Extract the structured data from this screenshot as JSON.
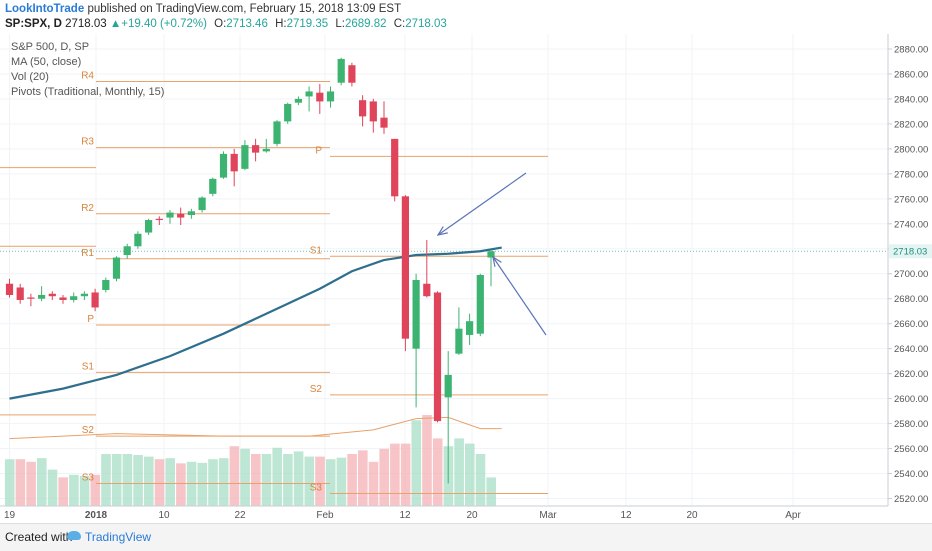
{
  "header": {
    "author": "LookIntoTrade",
    "published_text": "published on TradingView.com, February 15, 2018 13:09 EST",
    "symbol": "SP:SPX, D",
    "last": "2718.03",
    "change": "+19.40 (+0.72%)",
    "open_label": "O:",
    "open": "2713.46",
    "high_label": "H:",
    "high": "2719.35",
    "low_label": "L:",
    "low": "2689.82",
    "close_label": "C:",
    "close": "2718.03"
  },
  "legend": {
    "line1": "S&P 500, D, SP",
    "line2": "MA (50, close)",
    "line3": "Vol (20)",
    "line4": "Pivots (Traditional, Monthly, 15)"
  },
  "footer": {
    "created_with": "Created with",
    "brand": "TradingView"
  },
  "colors": {
    "up": "#26a69a",
    "down": "#e0445a",
    "up_candle": "#3cb371",
    "ma": "#2e6f8e",
    "pivot": "#e8a26b",
    "annotation": "#5b73b8",
    "price_line": "#6cc2b8"
  },
  "chart_data": {
    "type": "candlestick",
    "y_ticks": [
      2520,
      2540,
      2560,
      2580,
      2600,
      2620,
      2640,
      2660,
      2680,
      2700,
      2720,
      2740,
      2760,
      2780,
      2800,
      2820,
      2840,
      2860,
      2880
    ],
    "ylim": [
      2514,
      2892
    ],
    "x_ticks": [
      "19",
      "2018",
      "10",
      "22",
      "Feb",
      "12",
      "20",
      "Mar",
      "12",
      "20",
      "Apr"
    ],
    "last_price_label": "2718.03",
    "candles": [
      {
        "o": 2692,
        "h": 2696,
        "l": 2681,
        "c": 2683
      },
      {
        "o": 2689,
        "h": 2692,
        "l": 2676,
        "c": 2679
      },
      {
        "o": 2681,
        "h": 2684,
        "l": 2674,
        "c": 2680
      },
      {
        "o": 2680,
        "h": 2690,
        "l": 2678,
        "c": 2683
      },
      {
        "o": 2684,
        "h": 2686,
        "l": 2679,
        "c": 2682
      },
      {
        "o": 2681,
        "h": 2683,
        "l": 2676,
        "c": 2679
      },
      {
        "o": 2679,
        "h": 2685,
        "l": 2677,
        "c": 2682
      },
      {
        "o": 2682,
        "h": 2686,
        "l": 2679,
        "c": 2684
      },
      {
        "o": 2685,
        "h": 2688,
        "l": 2670,
        "c": 2673
      },
      {
        "o": 2687,
        "h": 2697,
        "l": 2685,
        "c": 2695
      },
      {
        "o": 2696,
        "h": 2714,
        "l": 2694,
        "c": 2713
      },
      {
        "o": 2715,
        "h": 2724,
        "l": 2712,
        "c": 2722
      },
      {
        "o": 2722,
        "h": 2734,
        "l": 2720,
        "c": 2732
      },
      {
        "o": 2733,
        "h": 2744,
        "l": 2731,
        "c": 2743
      },
      {
        "o": 2744,
        "h": 2746,
        "l": 2739,
        "c": 2743
      },
      {
        "o": 2745,
        "h": 2751,
        "l": 2740,
        "c": 2749
      },
      {
        "o": 2748,
        "h": 2753,
        "l": 2739,
        "c": 2745
      },
      {
        "o": 2747,
        "h": 2752,
        "l": 2744,
        "c": 2750
      },
      {
        "o": 2751,
        "h": 2762,
        "l": 2749,
        "c": 2761
      },
      {
        "o": 2764,
        "h": 2777,
        "l": 2762,
        "c": 2776
      },
      {
        "o": 2777,
        "h": 2798,
        "l": 2776,
        "c": 2796
      },
      {
        "o": 2796,
        "h": 2800,
        "l": 2770,
        "c": 2782
      },
      {
        "o": 2784,
        "h": 2807,
        "l": 2783,
        "c": 2803
      },
      {
        "o": 2803,
        "h": 2808,
        "l": 2790,
        "c": 2797
      },
      {
        "o": 2798,
        "h": 2808,
        "l": 2797,
        "c": 2800
      },
      {
        "o": 2804,
        "h": 2823,
        "l": 2802,
        "c": 2822
      },
      {
        "o": 2822,
        "h": 2837,
        "l": 2820,
        "c": 2836
      },
      {
        "o": 2837,
        "h": 2842,
        "l": 2835,
        "c": 2840
      },
      {
        "o": 2842,
        "h": 2850,
        "l": 2830,
        "c": 2846
      },
      {
        "o": 2845,
        "h": 2852,
        "l": 2828,
        "c": 2838
      },
      {
        "o": 2838,
        "h": 2850,
        "l": 2833,
        "c": 2846
      },
      {
        "o": 2853,
        "h": 2873,
        "l": 2851,
        "c": 2872
      },
      {
        "o": 2867,
        "h": 2869,
        "l": 2850,
        "c": 2853
      },
      {
        "o": 2839,
        "h": 2843,
        "l": 2818,
        "c": 2826
      },
      {
        "o": 2838,
        "h": 2840,
        "l": 2813,
        "c": 2822
      },
      {
        "o": 2825,
        "h": 2838,
        "l": 2812,
        "c": 2817
      },
      {
        "o": 2808,
        "h": 2808,
        "l": 2758,
        "c": 2762
      },
      {
        "o": 2762,
        "h": 2763,
        "l": 2638,
        "c": 2648
      },
      {
        "o": 2640,
        "h": 2700,
        "l": 2593,
        "c": 2695
      },
      {
        "o": 2692,
        "h": 2727,
        "l": 2681,
        "c": 2682
      },
      {
        "o": 2685,
        "h": 2686,
        "l": 2581,
        "c": 2582
      },
      {
        "o": 2601,
        "h": 2638,
        "l": 2532,
        "c": 2619
      },
      {
        "o": 2636,
        "h": 2673,
        "l": 2635,
        "c": 2656
      },
      {
        "o": 2651,
        "h": 2668,
        "l": 2643,
        "c": 2662
      },
      {
        "o": 2652,
        "h": 2700,
        "l": 2650,
        "c": 2699
      },
      {
        "o": 2713,
        "h": 2719,
        "l": 2690,
        "c": 2718
      }
    ],
    "volume_up": [
      true,
      false,
      false,
      true,
      true,
      false,
      true,
      true,
      false,
      true,
      true,
      true,
      true,
      true,
      false,
      true,
      false,
      true,
      true,
      true,
      true,
      false,
      true,
      false,
      true,
      true,
      true,
      true,
      true,
      false,
      true,
      true,
      false,
      false,
      false,
      false,
      false,
      false,
      true,
      false,
      false,
      true,
      true,
      true,
      true,
      true
    ],
    "volume_relative": [
      0.9,
      0.9,
      0.85,
      0.92,
      0.7,
      0.55,
      0.6,
      0.58,
      0.6,
      1.0,
      1.0,
      1.0,
      0.98,
      0.95,
      0.9,
      0.92,
      0.82,
      0.85,
      0.83,
      0.9,
      0.92,
      1.15,
      1.1,
      1.0,
      1.0,
      1.12,
      1.0,
      1.05,
      0.95,
      0.95,
      0.9,
      0.93,
      1.0,
      1.07,
      0.85,
      1.1,
      1.2,
      1.2,
      1.65,
      1.75,
      1.3,
      1.15,
      1.3,
      1.2,
      1.0,
      0.55
    ],
    "ma50": [
      {
        "i": 0,
        "v": 2600
      },
      {
        "i": 5,
        "v": 2608
      },
      {
        "i": 10,
        "v": 2619
      },
      {
        "i": 15,
        "v": 2634
      },
      {
        "i": 20,
        "v": 2652
      },
      {
        "i": 25,
        "v": 2672
      },
      {
        "i": 29,
        "v": 2688
      },
      {
        "i": 32,
        "v": 2702
      },
      {
        "i": 35,
        "v": 2711
      },
      {
        "i": 38,
        "v": 2715
      },
      {
        "i": 41,
        "v": 2716
      },
      {
        "i": 44,
        "v": 2718
      },
      {
        "i": 46,
        "v": 2721
      }
    ],
    "pivots": [
      {
        "label": "R1",
        "value": 2712,
        "i0": 0,
        "i1": 14,
        "show": true
      },
      {
        "label": "R2",
        "value": 2748,
        "i0": 0,
        "i1": 14,
        "show": true
      },
      {
        "label": "R3",
        "value": 2801,
        "i0": 0,
        "i1": 14,
        "show": true
      },
      {
        "label": "R4",
        "value": 2854,
        "i0": 0,
        "i1": 14,
        "show": true
      },
      {
        "label": "P",
        "value": 2659,
        "i0": 0,
        "i1": 14,
        "show": true
      },
      {
        "label": "S1",
        "value": 2621,
        "i0": 0,
        "i1": 14,
        "show": true
      },
      {
        "label": "S2",
        "value": 2570,
        "i0": 0,
        "i1": 14,
        "show": true
      },
      {
        "label": "S3",
        "value": 2532,
        "i0": 0,
        "i1": 14,
        "show": true
      },
      {
        "label": "",
        "value": 2785,
        "i0": -1,
        "i1": 0,
        "show": false
      },
      {
        "label": "",
        "value": 2722,
        "i0": -1,
        "i1": 0,
        "show": false
      },
      {
        "label": "",
        "value": 2587,
        "i0": -1,
        "i1": 0,
        "show": false
      },
      {
        "label": "P",
        "value": 2794,
        "i0": 34,
        "i1": 60,
        "show": true
      },
      {
        "label": "S1",
        "value": 2714,
        "i0": 34,
        "i1": 60,
        "show": true
      },
      {
        "label": "S2",
        "value": 2603,
        "i0": 34,
        "i1": 60,
        "show": true
      },
      {
        "label": "S3",
        "value": 2524,
        "i0": 34,
        "i1": 60,
        "show": true
      }
    ]
  }
}
